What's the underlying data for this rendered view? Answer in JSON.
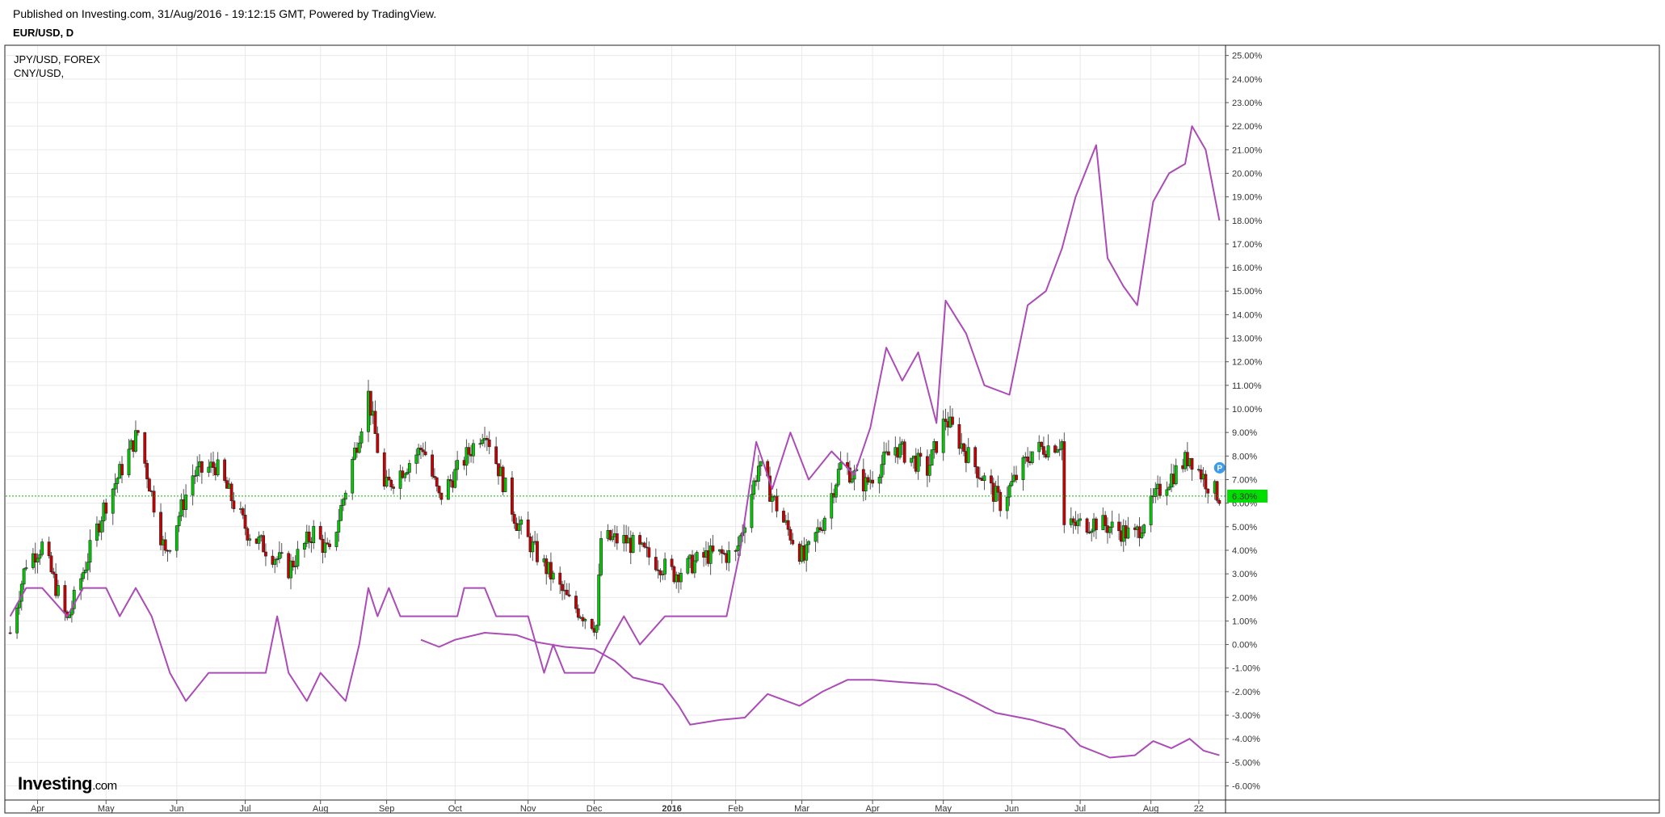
{
  "header": {
    "published": "Published on Investing.com, 31/Aug/2016 - 19:12:15 GMT, Powered by TradingView.",
    "symbol": "EUR/USD, D"
  },
  "legend": {
    "line1": "JPY/USD, FOREX",
    "line2": "CNY/USD,"
  },
  "logo": {
    "main": "Investing",
    "suffix": ".com"
  },
  "colors": {
    "up": "#00cc00",
    "down": "#cc0000",
    "compare": "#ab4cb6",
    "current_line": "#00b800",
    "current_badge": "#00dd00",
    "marker": "#3d9be9",
    "grid": "#e9e9e9"
  },
  "chart_data": {
    "type": "line",
    "title": "EUR/USD, D",
    "y_axis_unit": "% change",
    "ylim": [
      -6.6,
      25.4
    ],
    "y_ticks": [
      "25.00%",
      "24.00%",
      "23.00%",
      "22.00%",
      "21.00%",
      "20.00%",
      "19.00%",
      "18.00%",
      "17.00%",
      "16.00%",
      "15.00%",
      "14.00%",
      "13.00%",
      "12.00%",
      "11.00%",
      "10.00%",
      "9.00%",
      "8.00%",
      "7.00%",
      "6.00%",
      "5.00%",
      "4.00%",
      "3.00%",
      "2.00%",
      "1.00%",
      "0.00%",
      "-1.00%",
      "-2.00%",
      "-3.00%",
      "-4.00%",
      "-5.00%",
      "-6.00%"
    ],
    "x_ticks": [
      "Apr",
      "May",
      "Jun",
      "Jul",
      "Aug",
      "Sep",
      "Oct",
      "Nov",
      "Dec",
      "2016",
      "Feb",
      "Mar",
      "Apr",
      "May",
      "Jun",
      "Jul",
      "Aug",
      "22"
    ],
    "current_value": 6.3,
    "current_label": "6.30%",
    "marker_label": "P",
    "grid": true,
    "candles_note": "EUR/USD daily candlesticks (percent change)",
    "eur_close_keypoints": [
      {
        "x": "Mar 20 2015",
        "y": 0.5
      },
      {
        "x": "Mar 27 2015",
        "y": 3.5
      },
      {
        "x": "Apr 3 2015",
        "y": 4.2
      },
      {
        "x": "Apr 14 2015",
        "y": 1.0
      },
      {
        "x": "Apr 30 2015",
        "y": 5.8
      },
      {
        "x": "May 15 2015",
        "y": 9.0
      },
      {
        "x": "May 27 2015",
        "y": 3.8
      },
      {
        "x": "Jun 8 2015",
        "y": 7.2
      },
      {
        "x": "Jun 18 2015",
        "y": 7.6
      },
      {
        "x": "Jul 2 2015",
        "y": 4.8
      },
      {
        "x": "Jul 20 2015",
        "y": 3.2
      },
      {
        "x": "Jul 31 2015",
        "y": 4.8
      },
      {
        "x": "Aug 7 2015",
        "y": 3.8
      },
      {
        "x": "Aug 24 2015",
        "y": 10.6
      },
      {
        "x": "Aug 31 2015",
        "y": 6.6
      },
      {
        "x": "Sep 17 2015",
        "y": 8.4
      },
      {
        "x": "Sep 24 2015",
        "y": 6.2
      },
      {
        "x": "Oct 14 2015",
        "y": 9.2
      },
      {
        "x": "Oct 28 2015",
        "y": 5.2
      },
      {
        "x": "Nov 6 2015",
        "y": 3.8
      },
      {
        "x": "Nov 20 2015",
        "y": 1.8
      },
      {
        "x": "Dec 2 2015",
        "y": 0.8
      },
      {
        "x": "Dec 4 2015",
        "y": 4.5
      },
      {
        "x": "Dec 15 2015",
        "y": 4.4
      },
      {
        "x": "Jan 5 2016",
        "y": 3.0
      },
      {
        "x": "Jan 20 2016",
        "y": 3.8
      },
      {
        "x": "Feb 1 2016",
        "y": 3.8
      },
      {
        "x": "Feb 11 2016",
        "y": 7.6
      },
      {
        "x": "Feb 22 2016",
        "y": 5.2
      },
      {
        "x": "Mar 2 2016",
        "y": 3.6
      },
      {
        "x": "Mar 10 2016",
        "y": 5.2
      },
      {
        "x": "Mar 18 2016",
        "y": 7.6
      },
      {
        "x": "Mar 29 2016",
        "y": 6.8
      },
      {
        "x": "Apr 11 2016",
        "y": 8.4
      },
      {
        "x": "Apr 25 2016",
        "y": 7.4
      },
      {
        "x": "May 3 2016",
        "y": 9.6
      },
      {
        "x": "May 13 2016",
        "y": 8.0
      },
      {
        "x": "May 27 2016",
        "y": 6.0
      },
      {
        "x": "Jun 10 2016",
        "y": 8.2
      },
      {
        "x": "Jun 23 2016",
        "y": 8.6
      },
      {
        "x": "Jun 24 2016",
        "y": 5.0
      },
      {
        "x": "Jul 8 2016",
        "y": 5.2
      },
      {
        "x": "Jul 25 2016",
        "y": 4.6
      },
      {
        "x": "Aug 5 2016",
        "y": 6.6
      },
      {
        "x": "Aug 18 2016",
        "y": 8.0
      },
      {
        "x": "Aug 26 2016",
        "y": 6.8
      },
      {
        "x": "Aug 31 2016",
        "y": 6.3
      }
    ],
    "series": [
      {
        "name": "JPY/USD, FOREX",
        "points": [
          {
            "x": "Mar 20 2015",
            "y": 1.2
          },
          {
            "x": "Mar 27 2015",
            "y": 2.4
          },
          {
            "x": "Apr 3 2015",
            "y": 2.4
          },
          {
            "x": "Apr 14 2015",
            "y": 1.2
          },
          {
            "x": "Apr 21 2015",
            "y": 2.4
          },
          {
            "x": "May 1 2015",
            "y": 2.4
          },
          {
            "x": "May 7 2015",
            "y": 1.2
          },
          {
            "x": "May 14 2015",
            "y": 2.4
          },
          {
            "x": "May 21 2015",
            "y": 1.2
          },
          {
            "x": "May 29 2015",
            "y": -1.2
          },
          {
            "x": "Jun 5 2015",
            "y": -2.4
          },
          {
            "x": "Jun 15 2015",
            "y": -1.2
          },
          {
            "x": "Jun 30 2015",
            "y": -1.2
          },
          {
            "x": "Jul 10 2015",
            "y": -1.2
          },
          {
            "x": "Jul 15 2015",
            "y": 1.2
          },
          {
            "x": "Jul 20 2015",
            "y": -1.2
          },
          {
            "x": "Jul 28 2015",
            "y": -2.4
          },
          {
            "x": "Aug 3 2015",
            "y": -1.2
          },
          {
            "x": "Aug 14 2015",
            "y": -2.4
          },
          {
            "x": "Aug 20 2015",
            "y": 0.0
          },
          {
            "x": "Aug 24 2015",
            "y": 2.4
          },
          {
            "x": "Aug 28 2015",
            "y": 1.2
          },
          {
            "x": "Sep 2 2015",
            "y": 2.4
          },
          {
            "x": "Sep 7 2015",
            "y": 1.2
          },
          {
            "x": "Oct 2 2015",
            "y": 1.2
          },
          {
            "x": "Oct 5 2015",
            "y": 2.4
          },
          {
            "x": "Oct 14 2015",
            "y": 2.4
          },
          {
            "x": "Oct 19 2015",
            "y": 1.2
          },
          {
            "x": "Nov 2 2015",
            "y": 1.2
          },
          {
            "x": "Nov 9 2015",
            "y": -1.2
          },
          {
            "x": "Nov 13 2015",
            "y": 0.0
          },
          {
            "x": "Nov 18 2015",
            "y": -1.2
          },
          {
            "x": "Dec 1 2015",
            "y": -1.2
          },
          {
            "x": "Dec 7 2015",
            "y": 0.0
          },
          {
            "x": "Dec 14 2015",
            "y": 1.2
          },
          {
            "x": "Dec 21 2015",
            "y": 0.0
          },
          {
            "x": "Jan 1 2016",
            "y": 1.2
          },
          {
            "x": "Jan 14 2016",
            "y": 1.2
          },
          {
            "x": "Jan 28 2016",
            "y": 1.2
          },
          {
            "x": "Feb 3 2016",
            "y": 4.0
          },
          {
            "x": "Feb 10 2016",
            "y": 8.6
          },
          {
            "x": "Feb 17 2016",
            "y": 6.6
          },
          {
            "x": "Feb 25 2016",
            "y": 9.0
          },
          {
            "x": "Mar 4 2016",
            "y": 7.0
          },
          {
            "x": "Mar 14 2016",
            "y": 8.2
          },
          {
            "x": "Mar 24 2016",
            "y": 7.2
          },
          {
            "x": "Mar 31 2016",
            "y": 9.2
          },
          {
            "x": "Apr 7 2016",
            "y": 12.6
          },
          {
            "x": "Apr 14 2016",
            "y": 11.2
          },
          {
            "x": "Apr 21 2016",
            "y": 12.4
          },
          {
            "x": "Apr 29 2016",
            "y": 9.4
          },
          {
            "x": "May 3 2016",
            "y": 14.6
          },
          {
            "x": "May 12 2016",
            "y": 13.2
          },
          {
            "x": "May 20 2016",
            "y": 11.0
          },
          {
            "x": "May 31 2016",
            "y": 10.6
          },
          {
            "x": "Jun 8 2016",
            "y": 14.4
          },
          {
            "x": "Jun 16 2016",
            "y": 15.0
          },
          {
            "x": "Jun 23 2016",
            "y": 16.8
          },
          {
            "x": "Jun 29 2016",
            "y": 19.0
          },
          {
            "x": "Jul 8 2016",
            "y": 21.2
          },
          {
            "x": "Jul 13 2016",
            "y": 16.4
          },
          {
            "x": "Jul 20 2016",
            "y": 15.2
          },
          {
            "x": "Jul 26 2016",
            "y": 14.4
          },
          {
            "x": "Aug 2 2016",
            "y": 18.8
          },
          {
            "x": "Aug 9 2016",
            "y": 20.0
          },
          {
            "x": "Aug 16 2016",
            "y": 20.4
          },
          {
            "x": "Aug 19 2016",
            "y": 22.0
          },
          {
            "x": "Aug 25 2016",
            "y": 21.0
          },
          {
            "x": "Aug 31 2016",
            "y": 18.0
          }
        ]
      },
      {
        "name": "CNY/USD,",
        "points": [
          {
            "x": "Sep 16 2015",
            "y": 0.2
          },
          {
            "x": "Sep 24 2015",
            "y": -0.1
          },
          {
            "x": "Oct 1 2015",
            "y": 0.2
          },
          {
            "x": "Oct 14 2015",
            "y": 0.5
          },
          {
            "x": "Oct 28 2015",
            "y": 0.4
          },
          {
            "x": "Nov 6 2015",
            "y": 0.1
          },
          {
            "x": "Nov 18 2015",
            "y": -0.1
          },
          {
            "x": "Dec 1 2015",
            "y": -0.2
          },
          {
            "x": "Dec 10 2015",
            "y": -0.7
          },
          {
            "x": "Dec 18 2015",
            "y": -1.4
          },
          {
            "x": "Dec 31 2015",
            "y": -1.7
          },
          {
            "x": "Jan 7 2016",
            "y": -2.6
          },
          {
            "x": "Jan 12 2016",
            "y": -3.4
          },
          {
            "x": "Jan 25 2016",
            "y": -3.2
          },
          {
            "x": "Feb 5 2016",
            "y": -3.1
          },
          {
            "x": "Feb 15 2016",
            "y": -2.1
          },
          {
            "x": "Feb 29 2016",
            "y": -2.6
          },
          {
            "x": "Mar 10 2016",
            "y": -2.0
          },
          {
            "x": "Mar 21 2016",
            "y": -1.5
          },
          {
            "x": "Apr 1 2016",
            "y": -1.5
          },
          {
            "x": "Apr 14 2016",
            "y": -1.6
          },
          {
            "x": "Apr 29 2016",
            "y": -1.7
          },
          {
            "x": "May 11 2016",
            "y": -2.2
          },
          {
            "x": "May 25 2016",
            "y": -2.9
          },
          {
            "x": "Jun 10 2016",
            "y": -3.2
          },
          {
            "x": "Jun 24 2016",
            "y": -3.6
          },
          {
            "x": "Jul 1 2016",
            "y": -4.3
          },
          {
            "x": "Jul 14 2016",
            "y": -4.8
          },
          {
            "x": "Jul 25 2016",
            "y": -4.7
          },
          {
            "x": "Aug 2 2016",
            "y": -4.1
          },
          {
            "x": "Aug 10 2016",
            "y": -4.4
          },
          {
            "x": "Aug 18 2016",
            "y": -4.0
          },
          {
            "x": "Aug 24 2016",
            "y": -4.5
          },
          {
            "x": "Aug 31 2016",
            "y": -4.7
          }
        ]
      }
    ]
  }
}
